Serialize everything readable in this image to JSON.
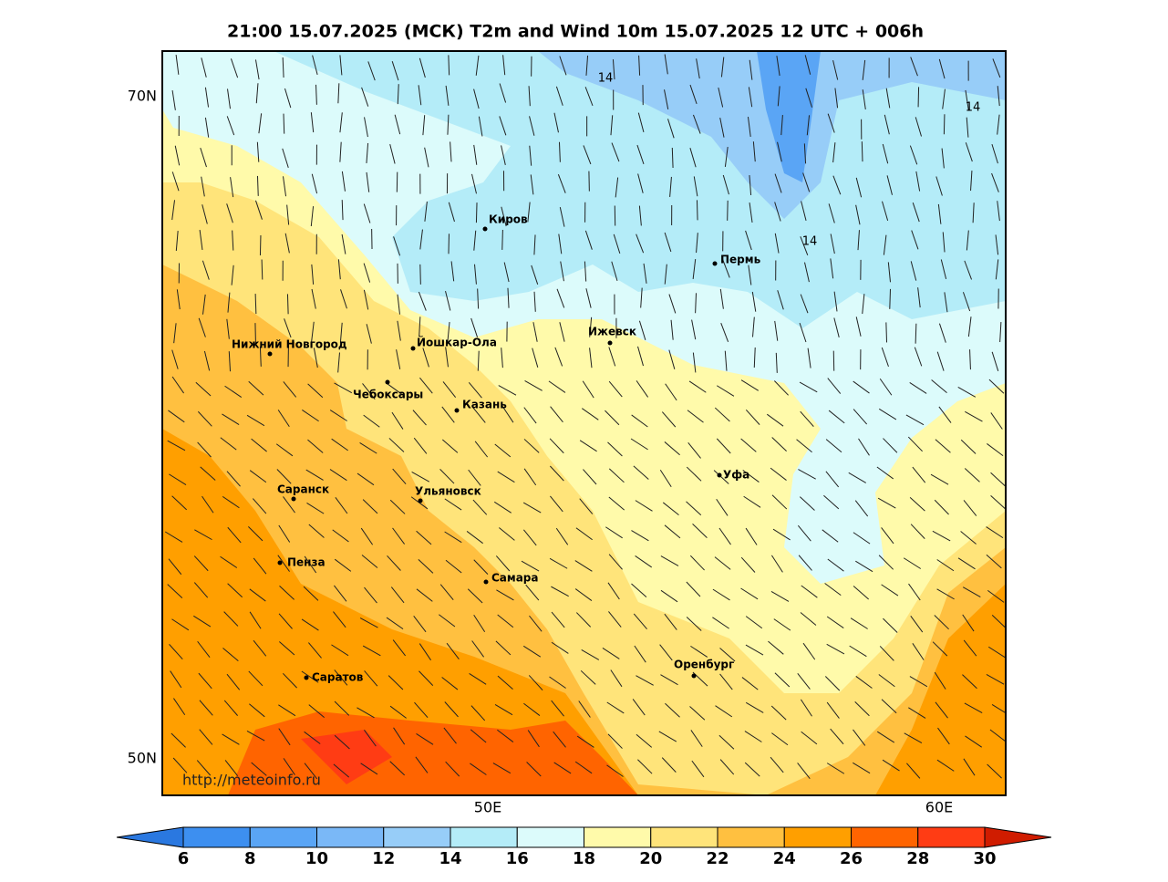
{
  "map": {
    "title": "21:00 15.07.2025 (МСК) T2m and Wind 10m 15.07.2025 12 UTC + 006h",
    "lat_labels": [
      "70N",
      "50N"
    ],
    "lon_labels": [
      "50E",
      "60E"
    ],
    "watermark": "http://meteoinfo.ru",
    "contour_labels": [
      "14",
      "14",
      "14"
    ],
    "cities": [
      "Киров",
      "Пермь",
      "Ижевск",
      "Нижний Новгород",
      "Йошкар-Ола",
      "Чебоксары",
      "Казань",
      "Уфа",
      "Саранск",
      "Ульяновск",
      "Пенза",
      "Самара",
      "Оренбург",
      "Саратов"
    ],
    "colorbar": {
      "levels": [
        6,
        8,
        10,
        12,
        14,
        16,
        18,
        20,
        22,
        24,
        26,
        28,
        30
      ],
      "colors": [
        "#2a78e0",
        "#3d8ff0",
        "#5aa5f5",
        "#7ab8f7",
        "#97cdf8",
        "#b4ecf8",
        "#dcfbfb",
        "#fffaaa",
        "#ffe47a",
        "#ffc040",
        "#ff9f00",
        "#ff6400",
        "#ff3c14",
        "#d01c00"
      ]
    }
  }
}
